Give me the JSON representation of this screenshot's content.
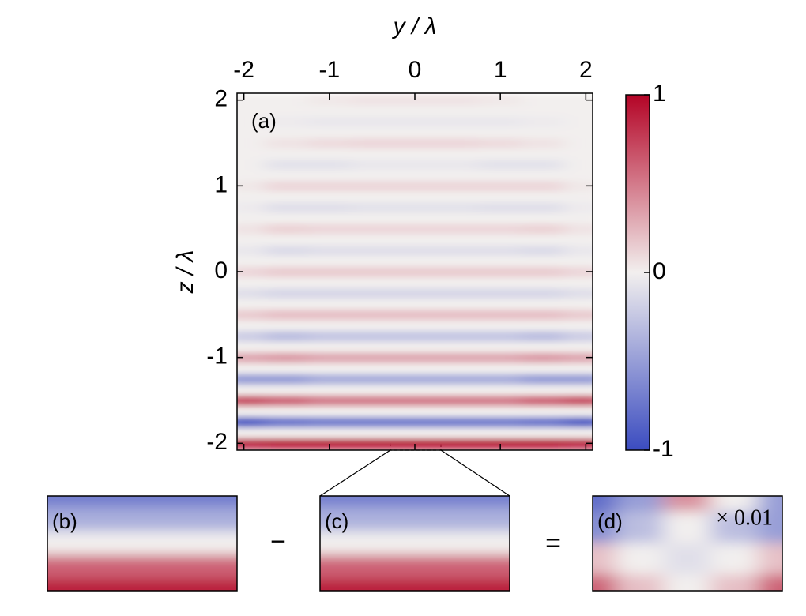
{
  "operators": [
    "−",
    "="
  ],
  "chart_data": [
    {
      "type": "heatmap",
      "label": "(a)",
      "x_label": "y / λ",
      "y_label": "z / λ",
      "xlim": [
        -2.08,
        2.08
      ],
      "ylim": [
        -2.08,
        2.08
      ],
      "xticks": [
        -2,
        -1,
        0,
        1,
        2
      ],
      "yticks": [
        -2,
        -1,
        0,
        1,
        2
      ],
      "colors": [
        "#3b4cc0",
        "#f2efee",
        "#b40426"
      ],
      "colorbar": {
        "lim": [
          -1,
          1
        ],
        "ticks": [
          -1,
          0,
          1
        ]
      },
      "x": [
        -2,
        -1.5,
        -1,
        -0.5,
        0,
        0.5,
        1,
        1.5,
        2
      ],
      "y": [
        -2,
        -1.875,
        -1.75,
        -1.625,
        -1.5,
        -1.375,
        -1.25,
        -1.125,
        -1,
        -0.875,
        -0.75,
        -0.625,
        -0.5,
        -0.375,
        -0.25,
        -0.125,
        0,
        0.125,
        0.25,
        0.375,
        0.5,
        0.625,
        0.75,
        0.875,
        1,
        1.125,
        1.25,
        1.375,
        1.5,
        1.625,
        1.75,
        1.875,
        2
      ],
      "values": [
        [
          0.85,
          0.9,
          0.9,
          0.9,
          0.9,
          0.9,
          0.9,
          0.9,
          0.85
        ],
        [
          0,
          0,
          0,
          0,
          0,
          0,
          0,
          0,
          0
        ],
        [
          -0.9,
          -0.75,
          -0.7,
          -0.7,
          -0.7,
          -0.7,
          -0.7,
          -0.75,
          -0.9
        ],
        [
          0,
          0,
          0,
          0,
          0,
          0,
          0,
          0,
          0
        ],
        [
          0.7,
          0.6,
          0.5,
          0.5,
          0.5,
          0.5,
          0.5,
          0.6,
          0.7
        ],
        [
          0,
          0,
          0,
          0,
          0,
          0,
          0,
          0,
          0
        ],
        [
          -0.5,
          -0.5,
          -0.4,
          -0.4,
          -0.4,
          -0.4,
          -0.4,
          -0.5,
          -0.5
        ],
        [
          0,
          0,
          0,
          0,
          0,
          0,
          0,
          0,
          0
        ],
        [
          0.3,
          0.35,
          0.3,
          0.3,
          0.3,
          0.3,
          0.3,
          0.35,
          0.3
        ],
        [
          0,
          0,
          0,
          0,
          0,
          0,
          0,
          0,
          0
        ],
        [
          -0.2,
          -0.3,
          -0.25,
          -0.25,
          -0.25,
          -0.25,
          -0.25,
          -0.3,
          -0.2
        ],
        [
          0,
          0,
          0,
          0,
          0,
          0,
          0,
          0,
          0
        ],
        [
          0.15,
          0.2,
          0.2,
          0.2,
          0.2,
          0.2,
          0.2,
          0.2,
          0.15
        ],
        [
          0,
          0,
          0,
          0,
          0,
          0,
          0,
          0,
          0
        ],
        [
          -0.1,
          -0.15,
          -0.15,
          -0.15,
          -0.15,
          -0.15,
          -0.15,
          -0.15,
          -0.1
        ],
        [
          0,
          0,
          0,
          0,
          0,
          0,
          0,
          0,
          0
        ],
        [
          0.1,
          0.15,
          0.15,
          0.15,
          0.15,
          0.15,
          0.15,
          0.15,
          0.1
        ],
        [
          0,
          0,
          0,
          0,
          0,
          0,
          0,
          0,
          0
        ],
        [
          -0.05,
          -0.12,
          -0.1,
          -0.1,
          -0.1,
          -0.1,
          -0.1,
          -0.12,
          -0.05
        ],
        [
          0,
          0,
          0,
          0,
          0,
          0,
          0,
          0,
          0
        ],
        [
          0.05,
          0.12,
          0.1,
          0.1,
          0.1,
          0.1,
          0.1,
          0.12,
          0.05
        ],
        [
          0,
          0,
          0,
          0,
          0,
          0,
          0,
          0,
          0
        ],
        [
          -0.03,
          -0.1,
          -0.1,
          -0.08,
          -0.08,
          -0.08,
          -0.1,
          -0.1,
          -0.03
        ],
        [
          0,
          0,
          0,
          0,
          0,
          0,
          0,
          0,
          0
        ],
        [
          0.03,
          0.1,
          0.1,
          0.1,
          0.1,
          0.1,
          0.1,
          0.1,
          0.03
        ],
        [
          0,
          0,
          0,
          0,
          0,
          0,
          0,
          0,
          0
        ],
        [
          0,
          -0.08,
          -0.08,
          -0.05,
          -0.05,
          -0.05,
          -0.08,
          -0.08,
          0
        ],
        [
          0,
          0,
          0,
          0,
          0,
          0,
          0,
          0,
          0
        ],
        [
          0,
          0.05,
          0.08,
          0.1,
          0.1,
          0.1,
          0.08,
          0.05,
          0
        ],
        [
          0,
          0,
          0,
          0,
          0,
          0,
          0,
          0,
          0
        ],
        [
          0,
          -0.03,
          -0.05,
          -0.05,
          -0.05,
          -0.05,
          -0.05,
          -0.03,
          0
        ],
        [
          0,
          0,
          0,
          0,
          0,
          0,
          0,
          0,
          0
        ],
        [
          0,
          0,
          0.03,
          0.05,
          0.05,
          0.05,
          0.03,
          0,
          0
        ]
      ]
    },
    {
      "type": "panel",
      "label": "(b)",
      "values": [
        [
          -0.7
        ],
        [
          -0.4
        ],
        [
          0
        ],
        [
          0.6
        ],
        [
          0.9
        ]
      ]
    },
    {
      "type": "panel",
      "label": "(c)",
      "values": [
        [
          -0.68
        ],
        [
          -0.38
        ],
        [
          0
        ],
        [
          0.6
        ],
        [
          0.9
        ]
      ]
    },
    {
      "type": "panel",
      "label": "(d)",
      "annotation": "× 0.01",
      "values": [
        [
          -0.8,
          -0.5,
          0.4,
          0,
          -0.5
        ],
        [
          -0.6,
          -0.3,
          0,
          -0.3,
          -0.5
        ],
        [
          0.2,
          0,
          -0.1,
          0,
          0.2
        ],
        [
          0.6,
          0.2,
          0,
          0.2,
          0.6
        ]
      ]
    }
  ]
}
